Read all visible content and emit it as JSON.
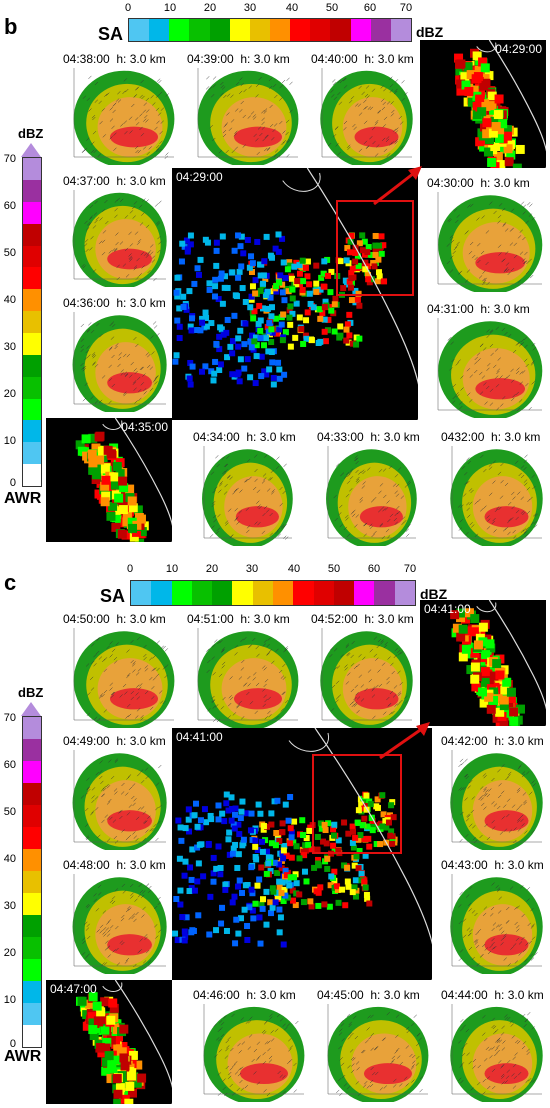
{
  "figure": {
    "colors": {
      "scale": [
        "#ffffff",
        "#4fc6f2",
        "#00b7e9",
        "#00ff00",
        "#08c000",
        "#00a000",
        "#ffff00",
        "#e8c000",
        "#ff9000",
        "#ff0000",
        "#e00000",
        "#c00000",
        "#ff00ff",
        "#9a30a0",
        "#b48cdc"
      ],
      "dark_bg": "#000000",
      "box": "#e01010"
    },
    "labels": {
      "sa": "SA",
      "dbz": "dBZ",
      "awr": "AWR"
    },
    "sa_ticks": [
      "0",
      "10",
      "20",
      "30",
      "40",
      "50",
      "60",
      "70"
    ],
    "awr_ticks": [
      "70",
      "60",
      "50",
      "40",
      "30",
      "20",
      "10",
      "0"
    ],
    "panel_b": {
      "letter": "b",
      "main_time": "04:29:00",
      "zoom_time": "04:29:00",
      "awr_zoom_time": "04:35:00",
      "panels": [
        "04:38:00  h: 3.0 km",
        "04:39:00  h: 3.0 km",
        "04:40:00  h: 3.0 km",
        "04:37:00  h: 3.0 km",
        "04:36:00  h: 3.0 km",
        "04:30:00  h: 3.0 km",
        "04:31:00  h: 3.0 km",
        "04:34:00  h: 3.0 km",
        "04:33:00  h: 3.0 km",
        "0432:00  h: 3.0 km"
      ]
    },
    "panel_c": {
      "letter": "c",
      "main_time": "04:41:00",
      "zoom_time": "04:41:00",
      "awr_zoom_time": "04:47:00",
      "panels": [
        "04:50:00  h: 3.0 km",
        "04:51:00  h: 3.0 km",
        "04:52:00  h: 3.0 km",
        "04:49:00  h: 3.0 km",
        "04:48:00  h: 3.0 km",
        "04:42:00  h: 3.0 km",
        "04:43:00  h: 3.0 km",
        "04:46:00  h: 3.0 km",
        "04:45:00  h: 3.0 km",
        "04:44:00  h: 3.0 km"
      ]
    }
  }
}
